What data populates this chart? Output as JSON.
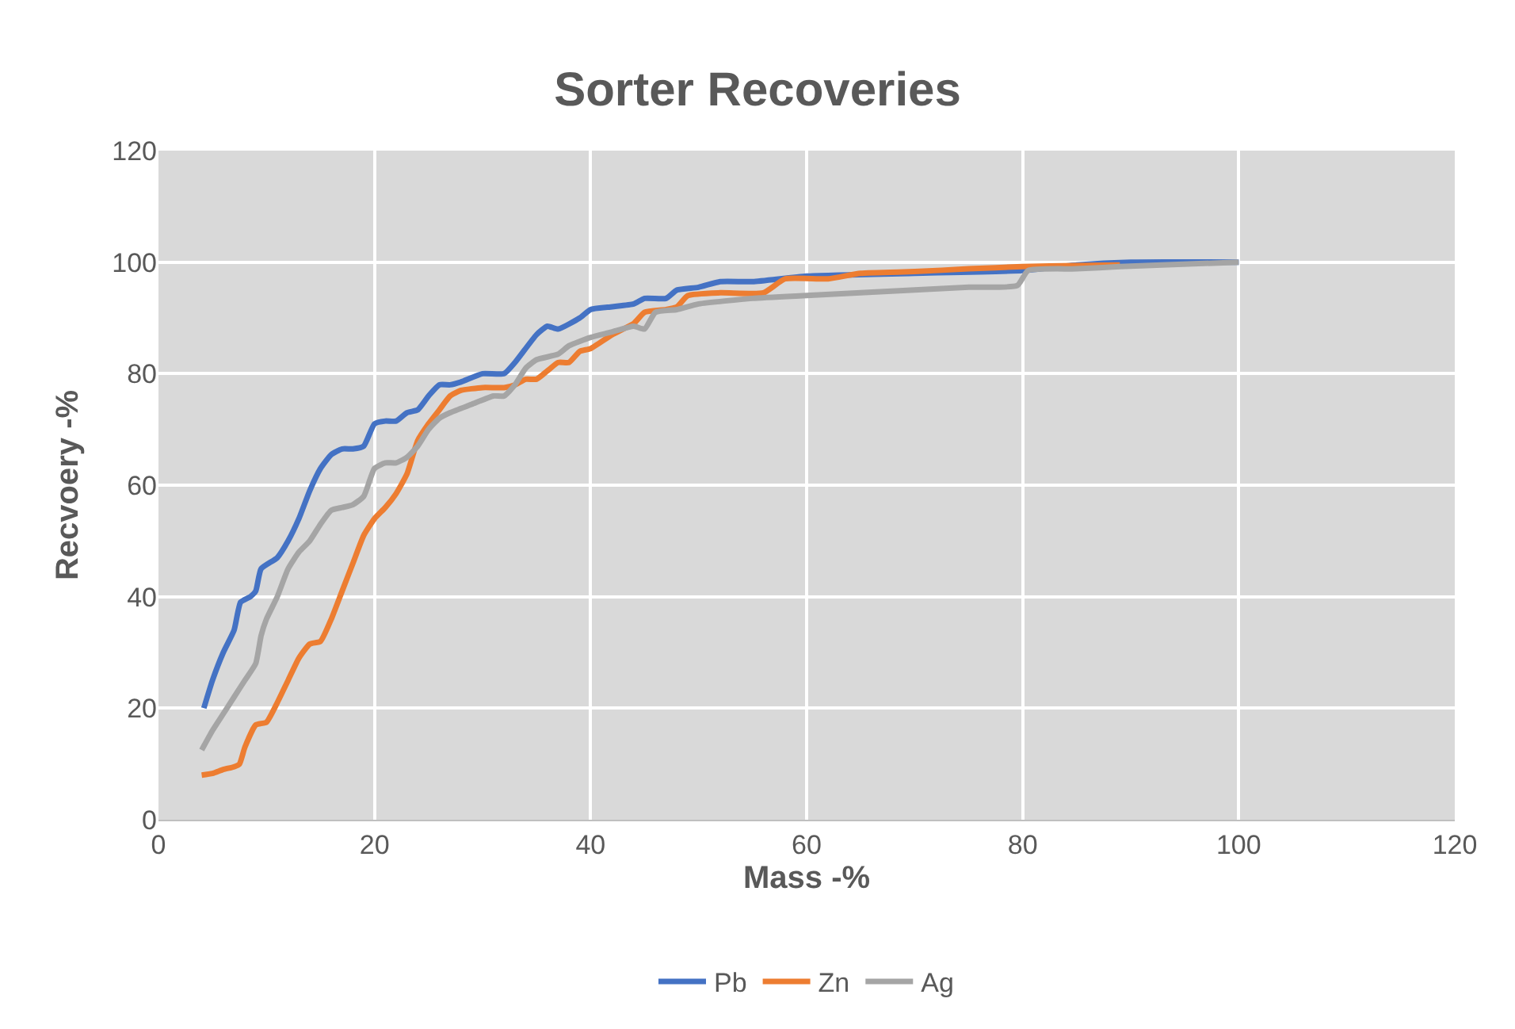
{
  "chart_data": {
    "type": "line",
    "title": "Sorter Recoveries",
    "xlabel": "Mass -%",
    "ylabel": "Recvoery -%",
    "xlim": [
      0,
      120
    ],
    "xticks": [
      0,
      20,
      40,
      60,
      80,
      100,
      120
    ],
    "ylim": [
      0,
      120
    ],
    "yticks": [
      0,
      20,
      40,
      60,
      80,
      100,
      120
    ],
    "grid": true,
    "legend": "bottom",
    "marker": "none",
    "line_style": "solid",
    "series": [
      {
        "name": "Pb",
        "color": "#4472c4",
        "x": [
          4.2,
          5,
          6,
          7,
          7.6,
          8.5,
          9,
          9.5,
          11,
          12,
          13,
          14,
          15,
          16,
          17,
          18,
          19,
          20,
          21,
          22,
          23,
          24,
          25,
          26,
          27,
          28,
          30,
          32,
          33,
          35,
          36,
          37,
          39,
          40,
          42,
          44,
          45,
          47,
          48,
          50,
          52,
          55,
          60,
          70,
          80,
          85,
          90,
          100
        ],
        "values": [
          20,
          25,
          30,
          34,
          39,
          40,
          41,
          45,
          47,
          50,
          54,
          59,
          63,
          65.5,
          66.5,
          66.5,
          67,
          71,
          71.5,
          71.5,
          73,
          73.5,
          76,
          78,
          78,
          78.5,
          80,
          80,
          82,
          87,
          88.5,
          88,
          90,
          91.5,
          92,
          92.5,
          93.5,
          93.5,
          95,
          95.5,
          96.5,
          96.5,
          97.5,
          98,
          98.5,
          99.5,
          100,
          100
        ]
      },
      {
        "name": "Zn",
        "color": "#ed7d31",
        "x": [
          4,
          5,
          6,
          7,
          7.5,
          8,
          9,
          10,
          11,
          12,
          13,
          14,
          15,
          16,
          17,
          18,
          19,
          20,
          21,
          22,
          23,
          24,
          25,
          26,
          27,
          28,
          30,
          32,
          33,
          34,
          35,
          36,
          37,
          38,
          39,
          40,
          42,
          44,
          45,
          47,
          48,
          49,
          52,
          56,
          58,
          62,
          65,
          70,
          75,
          80,
          85,
          89
        ],
        "values": [
          8,
          8.3,
          9,
          9.5,
          10,
          13,
          17,
          17.5,
          21,
          25,
          29,
          31.5,
          32,
          36,
          41,
          46,
          51,
          54,
          56,
          58.5,
          62,
          68,
          71,
          73.5,
          76,
          77,
          77.5,
          77.5,
          78,
          79,
          79,
          80.5,
          82,
          82,
          84,
          84.5,
          87,
          89,
          91,
          91.5,
          92,
          94,
          94.5,
          94.5,
          97,
          97,
          98,
          98.3,
          98.8,
          99.2,
          99.4,
          99.5
        ]
      },
      {
        "name": "Ag",
        "color": "#a5a5a5",
        "x": [
          4,
          5,
          6,
          7,
          8,
          9,
          9.5,
          10,
          11,
          12,
          13,
          14,
          15,
          16,
          17,
          18,
          19,
          20,
          21,
          22,
          23,
          24,
          25,
          26,
          27,
          29,
          31,
          32,
          33,
          34,
          35,
          37,
          38,
          40,
          42,
          44,
          45,
          46,
          48,
          50,
          55,
          60,
          65,
          70,
          75,
          79.5,
          80.5,
          85,
          89,
          100
        ],
        "values": [
          12.5,
          16,
          19,
          22,
          25,
          28,
          33,
          36,
          40,
          45,
          48,
          50,
          53,
          55.5,
          56,
          56.5,
          58,
          63,
          64,
          64,
          65,
          67,
          70,
          72,
          73,
          74.5,
          76,
          76,
          78,
          81,
          82.5,
          83.5,
          85,
          86.5,
          87.5,
          88.5,
          88,
          91,
          91.5,
          92.5,
          93.5,
          94,
          94.5,
          95,
          95.5,
          95.8,
          98.5,
          98.8,
          99.2,
          100
        ]
      }
    ]
  }
}
